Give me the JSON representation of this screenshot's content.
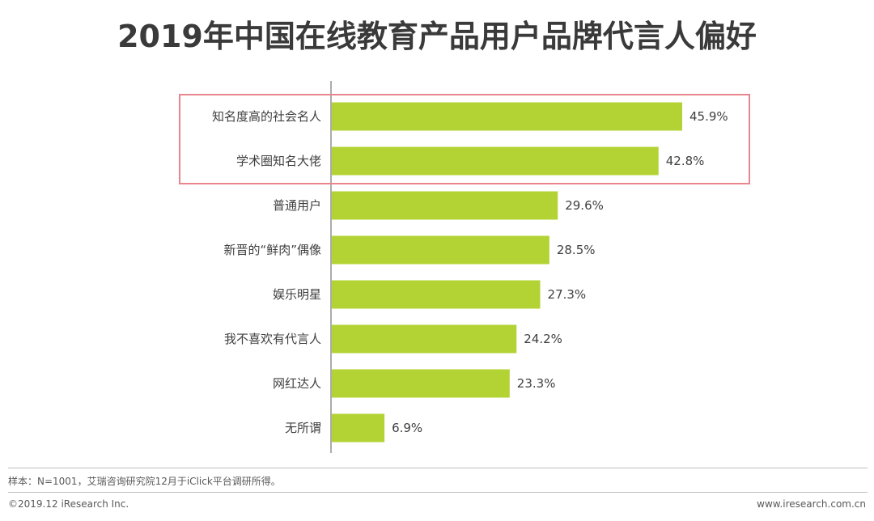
{
  "page": {
    "source_note": "样本：N=1001，艾瑞咨询研究院12月于iClick平台调研所得。",
    "copyright": "©2019.12 iResearch Inc.",
    "website": "www.iresearch.com.cn"
  },
  "chart_data": {
    "type": "bar",
    "orientation": "horizontal",
    "title": "2019年中国在线教育产品用户品牌代言人偏好",
    "categories": [
      "知名度高的社会名人",
      "学术圈知名大佬",
      "普通用户",
      "新晋的“鲜肉”偶像",
      "娱乐明星",
      "我不喜欢有代言人",
      "网红达人",
      "无所谓"
    ],
    "values": [
      45.9,
      42.8,
      29.6,
      28.5,
      27.3,
      24.2,
      23.3,
      6.9
    ],
    "value_labels": [
      "45.9%",
      "42.8%",
      "29.6%",
      "28.5%",
      "27.3%",
      "24.2%",
      "23.3%",
      "6.9%"
    ],
    "unit": "%",
    "xlim": [
      0,
      50
    ],
    "bar_color": "#b3d334",
    "highlight_color": "#e8858d",
    "highlighted_categories": [
      "知名度高的社会名人",
      "学术圈知名大佬"
    ],
    "xlabel": "",
    "ylabel": "",
    "grid": false
  }
}
